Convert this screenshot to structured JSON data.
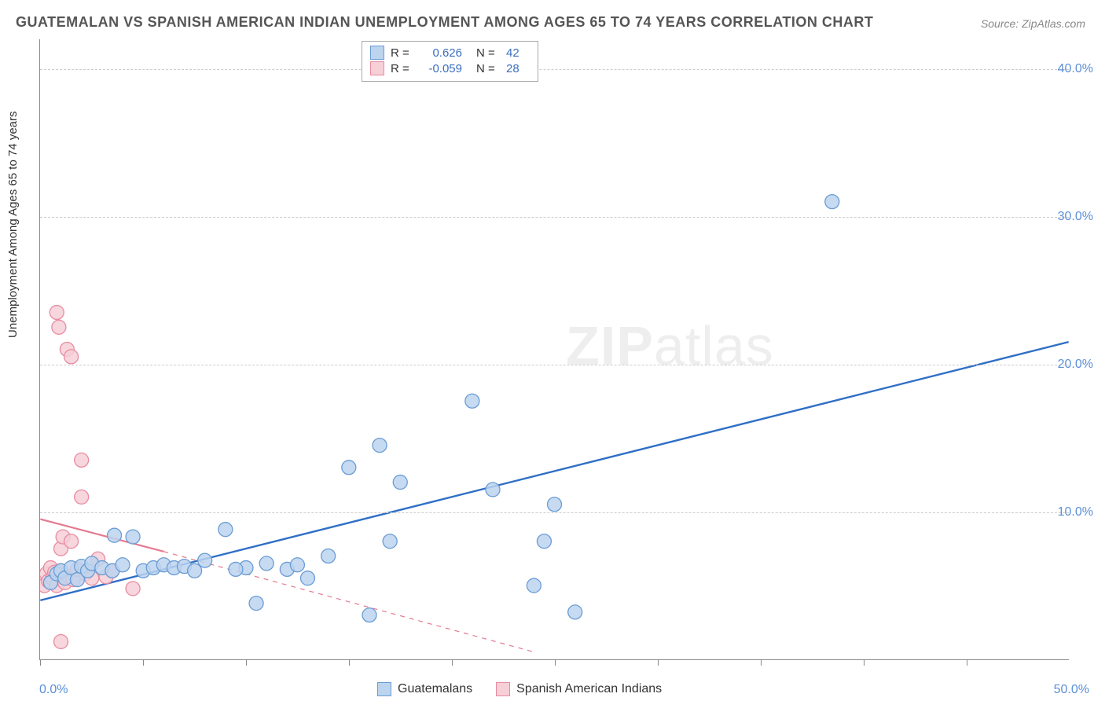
{
  "title": "GUATEMALAN VS SPANISH AMERICAN INDIAN UNEMPLOYMENT AMONG AGES 65 TO 74 YEARS CORRELATION CHART",
  "source": "Source: ZipAtlas.com",
  "y_axis_label": "Unemployment Among Ages 65 to 74 years",
  "watermark_bold": "ZIP",
  "watermark_rest": "atlas",
  "chart": {
    "type": "scatter",
    "xlim": [
      0,
      50
    ],
    "ylim": [
      0,
      42
    ],
    "x_origin_label": "0.0%",
    "x_end_label": "50.0%",
    "y_ticks": [
      10.0,
      20.0,
      30.0,
      40.0
    ],
    "y_tick_labels": [
      "10.0%",
      "20.0%",
      "30.0%",
      "40.0%"
    ],
    "x_tick_positions": [
      0,
      5,
      10,
      15,
      20,
      25,
      30,
      35,
      40,
      45
    ],
    "grid_color": "#cccccc",
    "background_color": "#ffffff",
    "marker_radius": 9,
    "marker_stroke_width": 1.3,
    "series": [
      {
        "name": "Guatemalans",
        "fill": "#bcd4ee",
        "stroke": "#6a9cd4",
        "line_color": "#2f6fc6",
        "line_width": 2.4,
        "line_dash": "none",
        "regression": {
          "x1": 0,
          "y1": 4.0,
          "x2": 50,
          "y2": 21.5
        },
        "points": [
          [
            0.5,
            5.2
          ],
          [
            0.8,
            5.8
          ],
          [
            1.0,
            6.0
          ],
          [
            1.2,
            5.5
          ],
          [
            1.5,
            6.2
          ],
          [
            1.8,
            5.4
          ],
          [
            2.0,
            6.3
          ],
          [
            2.3,
            6.0
          ],
          [
            2.5,
            6.5
          ],
          [
            3.0,
            6.2
          ],
          [
            3.5,
            6.0
          ],
          [
            3.6,
            8.4
          ],
          [
            4.0,
            6.4
          ],
          [
            4.5,
            8.3
          ],
          [
            5.0,
            6.0
          ],
          [
            5.5,
            6.2
          ],
          [
            6.0,
            6.4
          ],
          [
            6.5,
            6.2
          ],
          [
            7.0,
            6.3
          ],
          [
            7.5,
            6.0
          ],
          [
            8.0,
            6.7
          ],
          [
            9.0,
            8.8
          ],
          [
            10.0,
            6.2
          ],
          [
            10.5,
            3.8
          ],
          [
            11.0,
            6.5
          ],
          [
            12.0,
            6.1
          ],
          [
            13.0,
            5.5
          ],
          [
            14.0,
            7.0
          ],
          [
            15.0,
            13.0
          ],
          [
            16.0,
            3.0
          ],
          [
            16.5,
            14.5
          ],
          [
            17.0,
            8.0
          ],
          [
            17.5,
            12.0
          ],
          [
            21.0,
            17.5
          ],
          [
            22.0,
            11.5
          ],
          [
            24.0,
            5.0
          ],
          [
            24.5,
            8.0
          ],
          [
            25.0,
            10.5
          ],
          [
            26.0,
            3.2
          ],
          [
            38.5,
            31.0
          ],
          [
            9.5,
            6.1
          ],
          [
            12.5,
            6.4
          ]
        ]
      },
      {
        "name": "Spanish American Indians",
        "fill": "#f6cfd7",
        "stroke": "#e88ca0",
        "line_color": "#e47a90",
        "line_width": 2.2,
        "line_dash": "solid_then_dash",
        "regression_solid": {
          "x1": 0,
          "y1": 9.5,
          "x2": 6,
          "y2": 7.3
        },
        "regression_dash": {
          "x1": 6,
          "y1": 7.3,
          "x2": 24,
          "y2": 0.5
        },
        "points": [
          [
            0.2,
            5.0
          ],
          [
            0.3,
            5.8
          ],
          [
            0.4,
            5.3
          ],
          [
            0.5,
            6.2
          ],
          [
            0.6,
            5.5
          ],
          [
            0.7,
            5.9
          ],
          [
            0.8,
            23.5
          ],
          [
            0.8,
            5.0
          ],
          [
            0.9,
            22.5
          ],
          [
            1.0,
            6.0
          ],
          [
            1.0,
            7.5
          ],
          [
            1.0,
            1.2
          ],
          [
            1.1,
            8.3
          ],
          [
            1.2,
            5.2
          ],
          [
            1.3,
            21.0
          ],
          [
            1.4,
            5.6
          ],
          [
            1.5,
            8.0
          ],
          [
            1.5,
            20.5
          ],
          [
            1.6,
            5.4
          ],
          [
            1.8,
            6.1
          ],
          [
            2.0,
            13.5
          ],
          [
            2.0,
            11.0
          ],
          [
            2.2,
            5.8
          ],
          [
            2.5,
            5.5
          ],
          [
            2.8,
            6.8
          ],
          [
            3.2,
            5.6
          ],
          [
            3.5,
            6.0
          ],
          [
            4.5,
            4.8
          ]
        ]
      }
    ]
  },
  "correlation_box": {
    "rows": [
      {
        "swatch_fill": "#bcd4ee",
        "swatch_stroke": "#6a9cd4",
        "r_label": "R =",
        "r_value": "0.626",
        "n_label": "N =",
        "n_value": "42"
      },
      {
        "swatch_fill": "#f6cfd7",
        "swatch_stroke": "#e88ca0",
        "r_label": "R =",
        "r_value": "-0.059",
        "n_label": "N =",
        "n_value": "28"
      }
    ]
  },
  "legend": {
    "items": [
      {
        "swatch_fill": "#bcd4ee",
        "swatch_stroke": "#6a9cd4",
        "label": "Guatemalans"
      },
      {
        "swatch_fill": "#f6cfd7",
        "swatch_stroke": "#e88ca0",
        "label": "Spanish American Indians"
      }
    ]
  }
}
